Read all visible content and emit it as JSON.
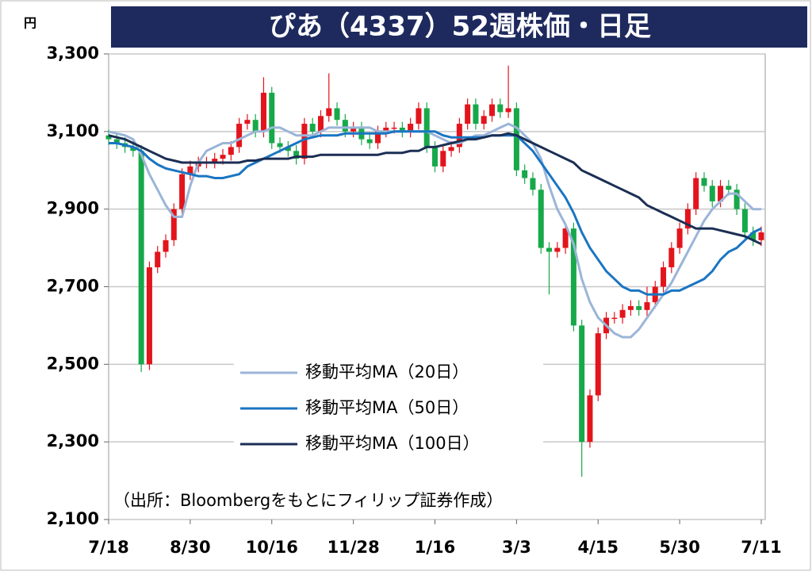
{
  "chart_data": {
    "type": "candlestick",
    "title": "ぴあ（4337）52週株価・日足",
    "y_unit": "円",
    "source": "（出所：Bloombergをもとにフィリップ証券作成）",
    "categories": [
      "7/18",
      null,
      null,
      null,
      null,
      null,
      null,
      null,
      null,
      null,
      "8/30",
      null,
      null,
      null,
      null,
      null,
      null,
      null,
      null,
      null,
      "10/16",
      null,
      null,
      null,
      null,
      null,
      null,
      null,
      null,
      null,
      "11/28",
      null,
      null,
      null,
      null,
      null,
      null,
      null,
      null,
      null,
      "1/16",
      null,
      null,
      null,
      null,
      null,
      null,
      null,
      null,
      null,
      "3/3",
      null,
      null,
      null,
      null,
      null,
      null,
      null,
      null,
      null,
      "4/15",
      null,
      null,
      null,
      null,
      null,
      null,
      null,
      null,
      null,
      "5/30",
      null,
      null,
      null,
      null,
      null,
      null,
      null,
      null,
      null,
      "7/11"
    ],
    "open": [
      3090,
      3080,
      3070,
      3060,
      3050,
      2500,
      2750,
      2790,
      2820,
      2900,
      2990,
      3010,
      3020,
      3020,
      3030,
      3040,
      3060,
      3120,
      3130,
      3100,
      3200,
      3070,
      3060,
      3050,
      3030,
      3120,
      3100,
      3140,
      3160,
      3130,
      3100,
      3110,
      3080,
      3070,
      3100,
      3110,
      3110,
      3100,
      3120,
      3160,
      3060,
      3010,
      3050,
      3060,
      3120,
      3170,
      3120,
      3140,
      3170,
      3150,
      3160,
      3000,
      2980,
      2950,
      2800,
      2790,
      2800,
      2850,
      2600,
      2300,
      2420,
      2580,
      2620,
      2620,
      2640,
      2650,
      2640,
      2660,
      2700,
      2750,
      2800,
      2850,
      2900,
      2980,
      2960,
      2920,
      2960,
      2950,
      2900,
      2840,
      2820
    ],
    "high": [
      3105,
      3095,
      3085,
      3075,
      3065,
      2765,
      2805,
      2835,
      2915,
      3005,
      3025,
      3035,
      3035,
      3045,
      3055,
      3075,
      3135,
      3145,
      3145,
      3240,
      3215,
      3085,
      3075,
      3065,
      3135,
      3135,
      3155,
      3250,
      3175,
      3145,
      3125,
      3125,
      3095,
      3115,
      3125,
      3125,
      3125,
      3135,
      3175,
      3175,
      3075,
      3065,
      3075,
      3135,
      3185,
      3185,
      3155,
      3185,
      3185,
      3270,
      3175,
      3015,
      2995,
      2965,
      2815,
      2815,
      2865,
      2865,
      2615,
      2435,
      2595,
      2635,
      2635,
      2655,
      2665,
      2665,
      2700,
      2715,
      2765,
      2815,
      2865,
      2915,
      2995,
      2995,
      2975,
      2975,
      2975,
      2965,
      2915,
      2855,
      2855
    ],
    "low": [
      3065,
      3055,
      3045,
      3035,
      2480,
      2485,
      2735,
      2775,
      2805,
      2885,
      2975,
      2995,
      3005,
      3005,
      3015,
      3025,
      3045,
      3105,
      3085,
      3085,
      3055,
      3045,
      3035,
      3015,
      3015,
      3085,
      3085,
      3125,
      3115,
      3085,
      3085,
      3065,
      3055,
      3055,
      3085,
      3095,
      3085,
      3085,
      3105,
      3045,
      2995,
      2995,
      3035,
      3045,
      3105,
      3105,
      3105,
      3125,
      3135,
      3135,
      2985,
      2965,
      2935,
      2785,
      2680,
      2775,
      2785,
      2585,
      2210,
      2285,
      2405,
      2565,
      2605,
      2605,
      2625,
      2625,
      2625,
      2645,
      2685,
      2735,
      2785,
      2835,
      2885,
      2945,
      2905,
      2905,
      2935,
      2885,
      2825,
      2805,
      2805
    ],
    "close": [
      3080,
      3070,
      3060,
      3050,
      2500,
      2750,
      2790,
      2820,
      2900,
      2990,
      3010,
      3020,
      3020,
      3030,
      3040,
      3060,
      3120,
      3130,
      3100,
      3200,
      3070,
      3060,
      3050,
      3030,
      3120,
      3100,
      3140,
      3160,
      3130,
      3100,
      3110,
      3080,
      3070,
      3100,
      3110,
      3110,
      3100,
      3120,
      3160,
      3060,
      3010,
      3050,
      3060,
      3120,
      3170,
      3120,
      3140,
      3170,
      3150,
      3160,
      3000,
      2980,
      2950,
      2800,
      2790,
      2800,
      2850,
      2600,
      2300,
      2420,
      2580,
      2620,
      2620,
      2640,
      2650,
      2640,
      2660,
      2700,
      2750,
      2800,
      2850,
      2900,
      2980,
      2960,
      2920,
      2960,
      2950,
      2900,
      2840,
      2820,
      2840
    ],
    "up_color": "#e3141c",
    "down_color": "#17a84a",
    "series": [
      {
        "name": "移動平均MA（20日）",
        "color": "#9bb5d8",
        "values": [
          3100,
          3095,
          3090,
          3080,
          3040,
          2990,
          2950,
          2910,
          2880,
          2880,
          2960,
          3020,
          3050,
          3060,
          3070,
          3070,
          3080,
          3090,
          3100,
          3100,
          3110,
          3110,
          3100,
          3090,
          3090,
          3090,
          3100,
          3110,
          3110,
          3110,
          3110,
          3110,
          3110,
          3100,
          3100,
          3100,
          3100,
          3100,
          3100,
          3100,
          3090,
          3080,
          3070,
          3070,
          3080,
          3090,
          3090,
          3100,
          3110,
          3120,
          3110,
          3090,
          3070,
          3030,
          2960,
          2900,
          2860,
          2810,
          2720,
          2660,
          2620,
          2600,
          2580,
          2570,
          2570,
          2590,
          2620,
          2650,
          2680,
          2710,
          2750,
          2790,
          2830,
          2870,
          2900,
          2920,
          2940,
          2940,
          2920,
          2900,
          2900
        ]
      },
      {
        "name": "移動平均MA（50日）",
        "color": "#1a75c2",
        "values": [
          3070,
          3070,
          3065,
          3060,
          3050,
          3030,
          3015,
          3005,
          3000,
          2995,
          2990,
          2985,
          2985,
          2980,
          2980,
          2985,
          2990,
          3010,
          3020,
          3030,
          3040,
          3050,
          3060,
          3070,
          3080,
          3085,
          3090,
          3090,
          3090,
          3095,
          3095,
          3095,
          3095,
          3095,
          3095,
          3100,
          3100,
          3100,
          3100,
          3100,
          3100,
          3090,
          3085,
          3085,
          3085,
          3085,
          3085,
          3090,
          3090,
          3090,
          3090,
          3070,
          3050,
          3020,
          2990,
          2960,
          2930,
          2890,
          2840,
          2800,
          2770,
          2740,
          2720,
          2700,
          2690,
          2690,
          2680,
          2680,
          2680,
          2690,
          2690,
          2700,
          2710,
          2720,
          2740,
          2770,
          2790,
          2800,
          2820,
          2840,
          2850
        ]
      },
      {
        "name": "移動平均MA（100日）",
        "color": "#1b2e54",
        "values": [
          3090,
          3085,
          3080,
          3070,
          3060,
          3050,
          3040,
          3030,
          3025,
          3020,
          3020,
          3020,
          3020,
          3020,
          3020,
          3020,
          3020,
          3025,
          3025,
          3030,
          3030,
          3030,
          3030,
          3035,
          3035,
          3035,
          3040,
          3040,
          3040,
          3040,
          3040,
          3040,
          3040,
          3040,
          3045,
          3045,
          3045,
          3050,
          3050,
          3060,
          3060,
          3065,
          3070,
          3075,
          3080,
          3080,
          3085,
          3090,
          3090,
          3095,
          3090,
          3080,
          3070,
          3060,
          3050,
          3040,
          3030,
          3020,
          3000,
          2990,
          2980,
          2970,
          2960,
          2950,
          2940,
          2930,
          2910,
          2900,
          2890,
          2880,
          2870,
          2860,
          2850,
          2850,
          2850,
          2845,
          2840,
          2835,
          2830,
          2820,
          2810
        ]
      }
    ],
    "ylim": [
      2100,
      3300
    ],
    "yticks": [
      {
        "value": 2100,
        "label": "2,100"
      },
      {
        "value": 2300,
        "label": "2,300"
      },
      {
        "value": 2500,
        "label": "2,500"
      },
      {
        "value": 2700,
        "label": "2,700"
      },
      {
        "value": 2900,
        "label": "2,900"
      },
      {
        "value": 3100,
        "label": "3,100"
      },
      {
        "value": 3300,
        "label": "3,300"
      }
    ],
    "grid": true
  }
}
